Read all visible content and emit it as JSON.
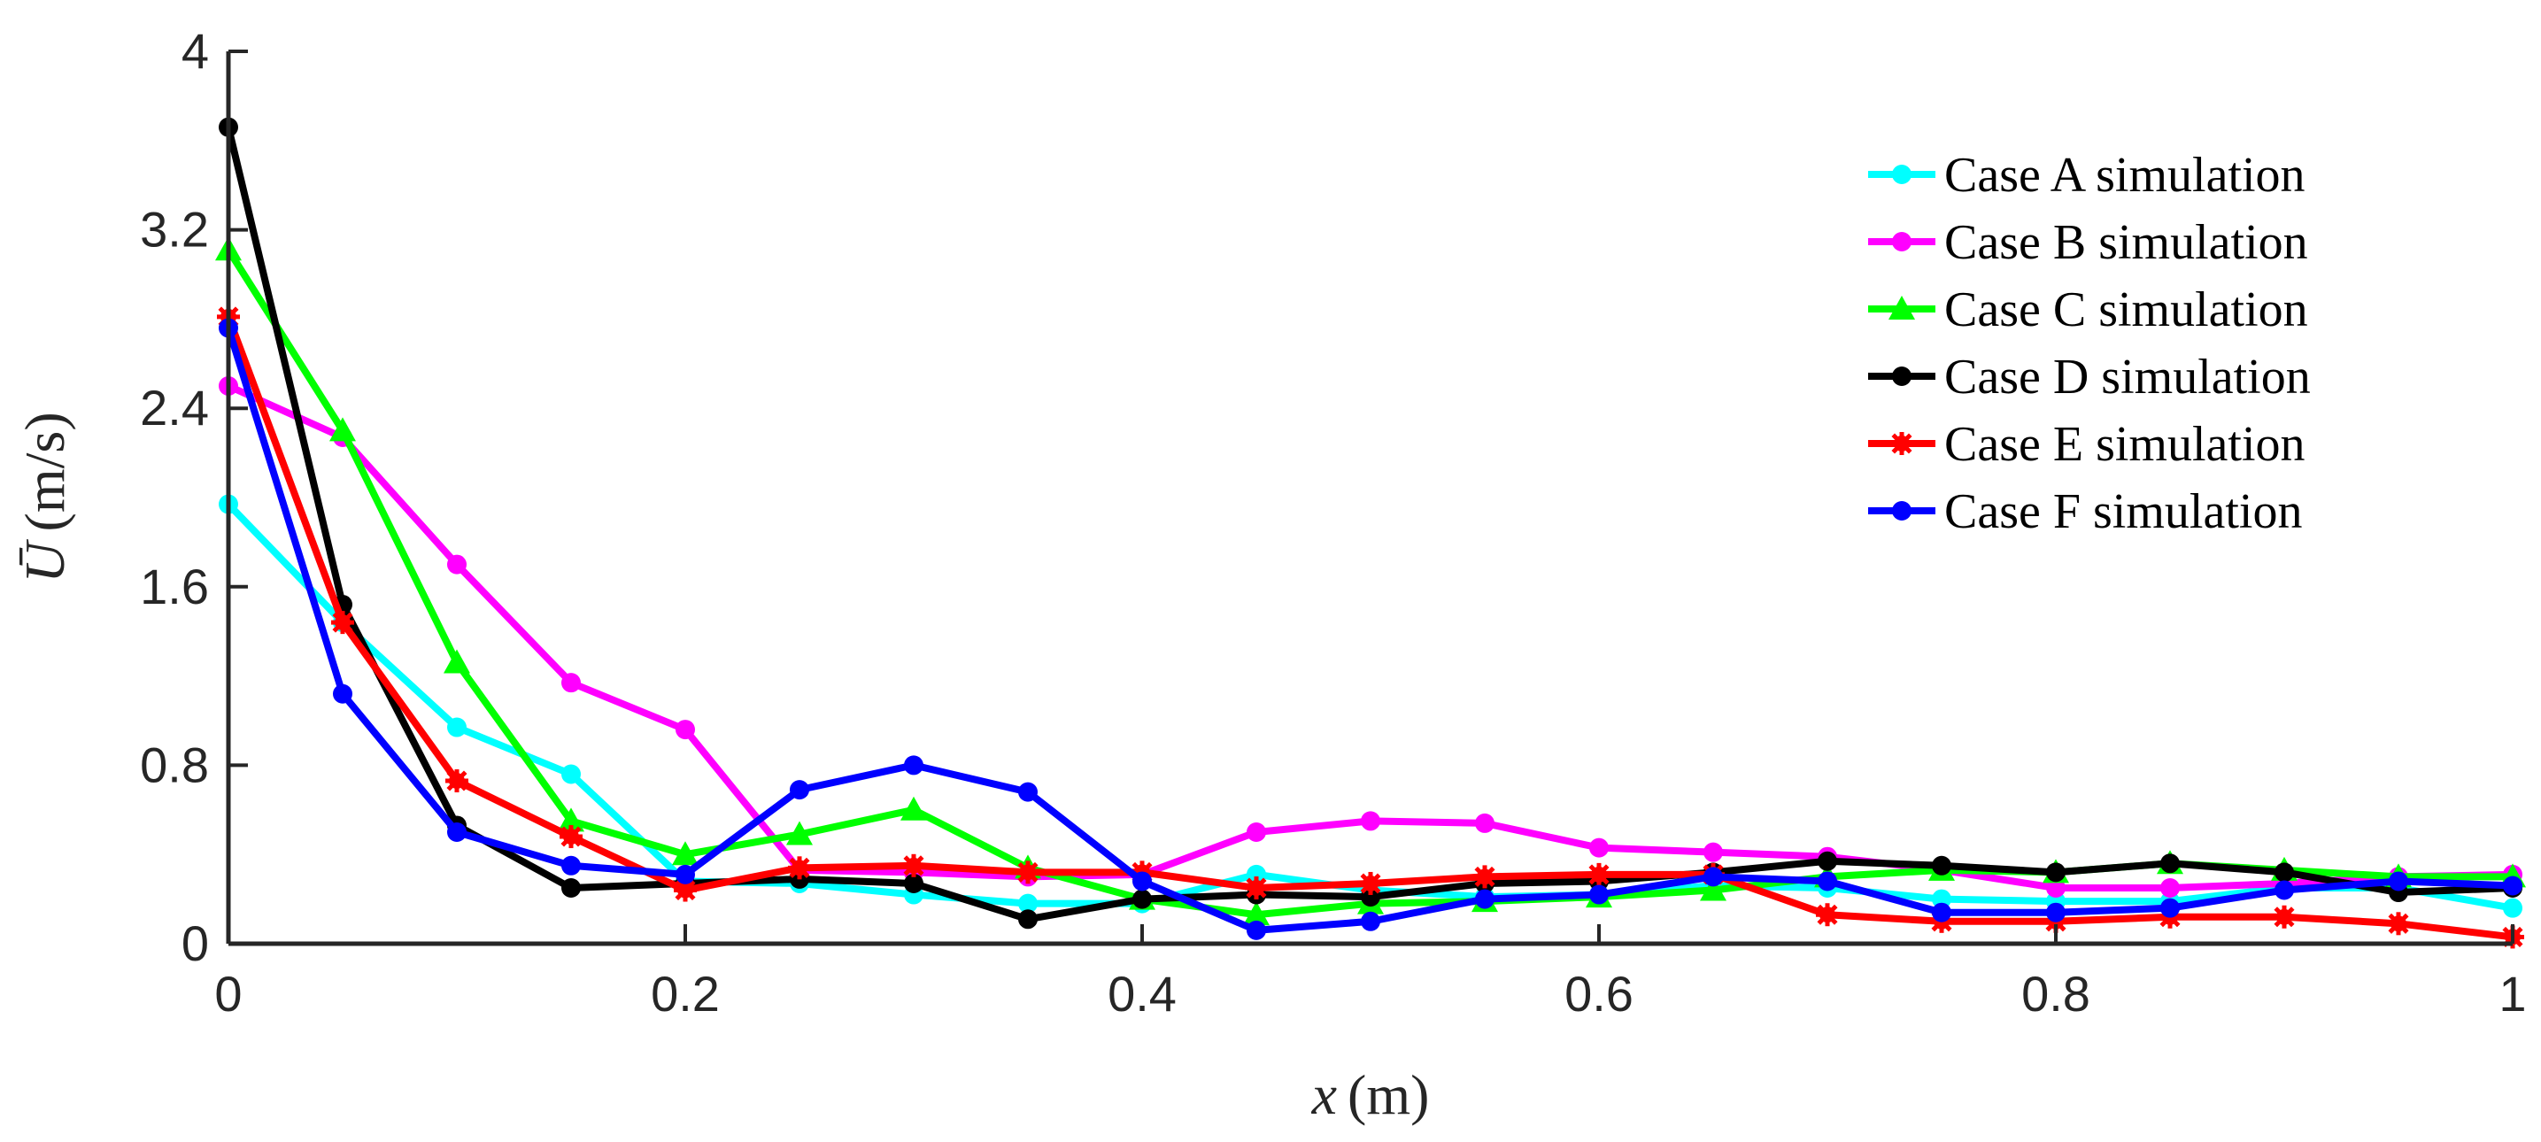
{
  "chart_data": {
    "type": "line",
    "xlabel_var": "x",
    "xlabel_unit": "(m)",
    "ylabel_var": "Ū",
    "ylabel_unit": "(m/s)",
    "xlim": [
      0,
      1
    ],
    "ylim": [
      0,
      4
    ],
    "xticks": [
      0,
      0.2,
      0.4,
      0.6,
      0.8,
      1
    ],
    "xtick_labels": [
      "0",
      "0.2",
      "0.4",
      "0.6",
      "0.8",
      "1"
    ],
    "yticks": [
      0,
      0.8,
      1.6,
      2.4,
      3.2,
      4
    ],
    "ytick_labels": [
      "0",
      "0.8",
      "1.6",
      "2.4",
      "3.2",
      "4"
    ],
    "legend_position": "top-right",
    "grid": false,
    "x": [
      0,
      0.05,
      0.1,
      0.15,
      0.2,
      0.25,
      0.3,
      0.35,
      0.4,
      0.45,
      0.5,
      0.55,
      0.6,
      0.65,
      0.7,
      0.75,
      0.8,
      0.85,
      0.9,
      0.95,
      1
    ],
    "series": [
      {
        "name": "Case A simulation",
        "color": "#00FFFF",
        "marker": "circle",
        "values": [
          1.97,
          1.44,
          0.97,
          0.76,
          0.28,
          0.27,
          0.22,
          0.18,
          0.18,
          0.31,
          0.24,
          0.21,
          0.22,
          0.26,
          0.25,
          0.2,
          0.19,
          0.19,
          0.25,
          0.25,
          0.16
        ]
      },
      {
        "name": "Case B simulation",
        "color": "#FF00FF",
        "marker": "circle",
        "values": [
          2.5,
          2.27,
          1.7,
          1.17,
          0.96,
          0.33,
          0.32,
          0.3,
          0.31,
          0.5,
          0.55,
          0.54,
          0.43,
          0.41,
          0.39,
          0.33,
          0.25,
          0.25,
          0.27,
          0.3,
          0.31
        ]
      },
      {
        "name": "Case C simulation",
        "color": "#00FF00",
        "marker": "triangle",
        "values": [
          3.11,
          2.3,
          1.26,
          0.55,
          0.4,
          0.49,
          0.6,
          0.34,
          0.2,
          0.13,
          0.18,
          0.19,
          0.21,
          0.24,
          0.3,
          0.33,
          0.32,
          0.36,
          0.33,
          0.3,
          0.3
        ]
      },
      {
        "name": "Case D simulation",
        "color": "#000000",
        "marker": "circle",
        "values": [
          3.66,
          1.52,
          0.53,
          0.25,
          0.27,
          0.29,
          0.27,
          0.11,
          0.2,
          0.22,
          0.21,
          0.27,
          0.28,
          0.32,
          0.37,
          0.35,
          0.32,
          0.36,
          0.32,
          0.23,
          0.25
        ]
      },
      {
        "name": "Case E simulation",
        "color": "#FF0000",
        "marker": "asterisk",
        "values": [
          2.81,
          1.44,
          0.73,
          0.48,
          0.24,
          0.34,
          0.35,
          0.32,
          0.32,
          0.25,
          0.27,
          0.3,
          0.31,
          0.31,
          0.13,
          0.1,
          0.1,
          0.12,
          0.12,
          0.09,
          0.03
        ]
      },
      {
        "name": "Case F simulation",
        "color": "#0000FF",
        "marker": "circle",
        "values": [
          2.76,
          1.12,
          0.5,
          0.35,
          0.31,
          0.69,
          0.8,
          0.68,
          0.28,
          0.06,
          0.1,
          0.2,
          0.22,
          0.3,
          0.28,
          0.14,
          0.14,
          0.16,
          0.24,
          0.28,
          0.26
        ]
      }
    ]
  }
}
